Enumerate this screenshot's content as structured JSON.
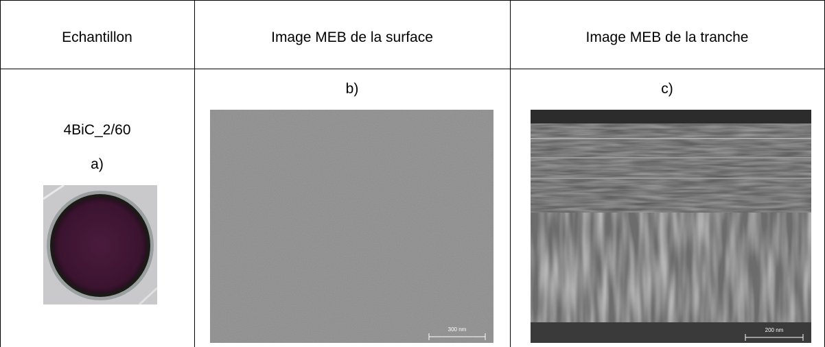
{
  "table": {
    "header": [
      "Echantillon",
      "Image MEB de la surface",
      "Image MEB de la tranche"
    ],
    "cells": [
      {
        "sample": "4BiC_2/60",
        "label": "a)"
      },
      {
        "label": "b)",
        "scale": "300 nm"
      },
      {
        "label": "c)",
        "scale": "200 nm"
      }
    ]
  }
}
